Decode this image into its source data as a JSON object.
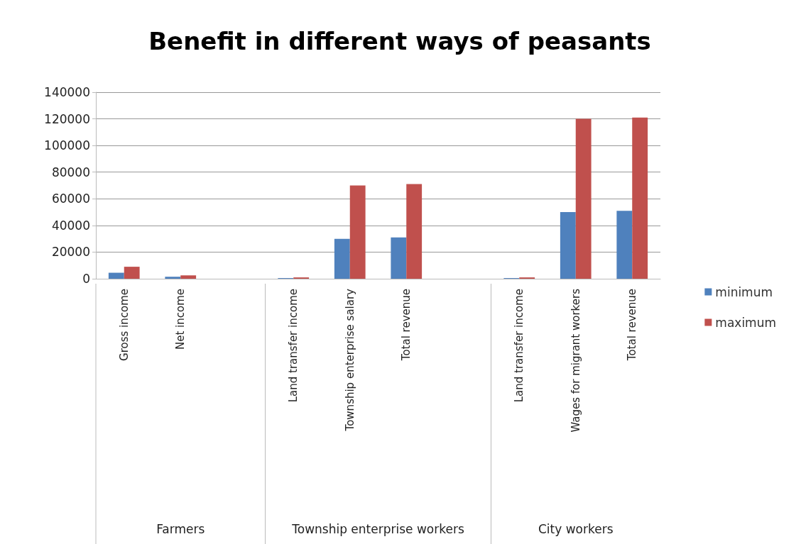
{
  "chart_data": {
    "type": "bar",
    "title": "Benefit in different ways of peasants",
    "categories": [
      "Gross income",
      "Net income",
      null,
      "Land transfer income",
      "Township enterprise salary",
      "Total revenue",
      null,
      "Land transfer income",
      "Wages for migrant workers",
      "Total revenue"
    ],
    "series": [
      {
        "name": "minimum",
        "color": "#4f81bd",
        "values": [
          4500,
          1500,
          null,
          500,
          30000,
          31000,
          null,
          500,
          50000,
          51000
        ]
      },
      {
        "name": "maximum",
        "color": "#c0504d",
        "values": [
          9000,
          2500,
          null,
          1000,
          70000,
          71000,
          null,
          1000,
          120000,
          121000
        ]
      }
    ],
    "annotations": [
      "Farmers",
      "Township enterprise workers",
      "City workers"
    ],
    "ylim": [
      0,
      140000
    ],
    "yticks": [
      0,
      20000,
      40000,
      60000,
      80000,
      100000,
      120000,
      140000
    ],
    "grid": "y",
    "legend": "right"
  }
}
